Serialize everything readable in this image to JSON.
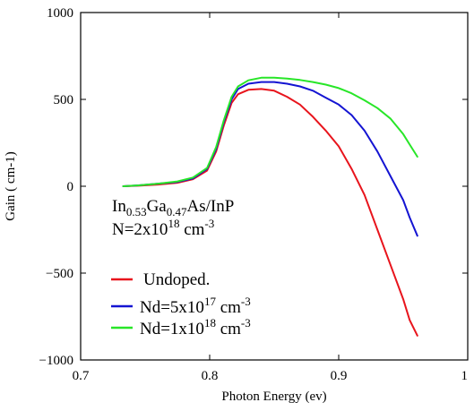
{
  "chart_data": {
    "type": "line",
    "xlabel": "Photon Energy (ev)",
    "ylabel": "Gain ( cm-1)",
    "xlim": [
      0.7,
      1.0
    ],
    "ylim": [
      -1000,
      1000
    ],
    "x_ticks": [
      0.7,
      0.8,
      0.9,
      1.0
    ],
    "x_tick_labels": [
      "0.7",
      "0.8",
      "0.9",
      "1"
    ],
    "y_ticks": [
      -1000,
      -500,
      0,
      500,
      1000
    ],
    "y_tick_labels": [
      "−1000",
      "−500",
      "0",
      "500",
      "1000"
    ],
    "grid": false,
    "legend_position": "bottom-left",
    "annotation": {
      "line1_parts": [
        "In",
        "0.53",
        "Ga",
        "0.47",
        "As/InP"
      ],
      "line2_parts": [
        "N=2x10",
        "18",
        " cm",
        "-3"
      ]
    },
    "series": [
      {
        "name": "Undoped.",
        "color": "#e8141c",
        "x": [
          0.733,
          0.745,
          0.76,
          0.775,
          0.787,
          0.798,
          0.805,
          0.811,
          0.817,
          0.822,
          0.83,
          0.84,
          0.85,
          0.86,
          0.87,
          0.88,
          0.89,
          0.9,
          0.91,
          0.92,
          0.93,
          0.94,
          0.95,
          0.955,
          0.961
        ],
        "y": [
          0,
          3,
          10,
          20,
          40,
          90,
          200,
          350,
          480,
          530,
          555,
          560,
          550,
          515,
          470,
          400,
          320,
          230,
          100,
          -50,
          -250,
          -450,
          -650,
          -770,
          -860
        ]
      },
      {
        "name": "Nd=5x10^17 cm^-3",
        "label_parts": [
          "Nd=5x10",
          "17",
          " cm",
          "-3"
        ],
        "color": "#1414d2",
        "x": [
          0.733,
          0.745,
          0.76,
          0.775,
          0.787,
          0.798,
          0.805,
          0.811,
          0.817,
          0.822,
          0.83,
          0.84,
          0.85,
          0.86,
          0.87,
          0.88,
          0.89,
          0.9,
          0.91,
          0.92,
          0.93,
          0.94,
          0.95,
          0.955,
          0.961
        ],
        "y": [
          0,
          5,
          15,
          25,
          45,
          100,
          215,
          370,
          500,
          560,
          590,
          600,
          600,
          590,
          575,
          550,
          510,
          470,
          410,
          320,
          200,
          60,
          -80,
          -180,
          -285
        ]
      },
      {
        "name": "Nd=1x10^18 cm^-3",
        "label_parts": [
          "Nd=1x10",
          "18",
          " cm",
          "-3"
        ],
        "color": "#28e628",
        "x": [
          0.733,
          0.745,
          0.76,
          0.775,
          0.787,
          0.798,
          0.805,
          0.811,
          0.817,
          0.822,
          0.83,
          0.84,
          0.85,
          0.86,
          0.87,
          0.88,
          0.89,
          0.9,
          0.91,
          0.92,
          0.93,
          0.94,
          0.95,
          0.955,
          0.961
        ],
        "y": [
          0,
          5,
          15,
          28,
          50,
          105,
          225,
          380,
          515,
          575,
          610,
          625,
          625,
          620,
          612,
          600,
          585,
          565,
          535,
          495,
          450,
          390,
          300,
          240,
          170
        ]
      }
    ]
  }
}
